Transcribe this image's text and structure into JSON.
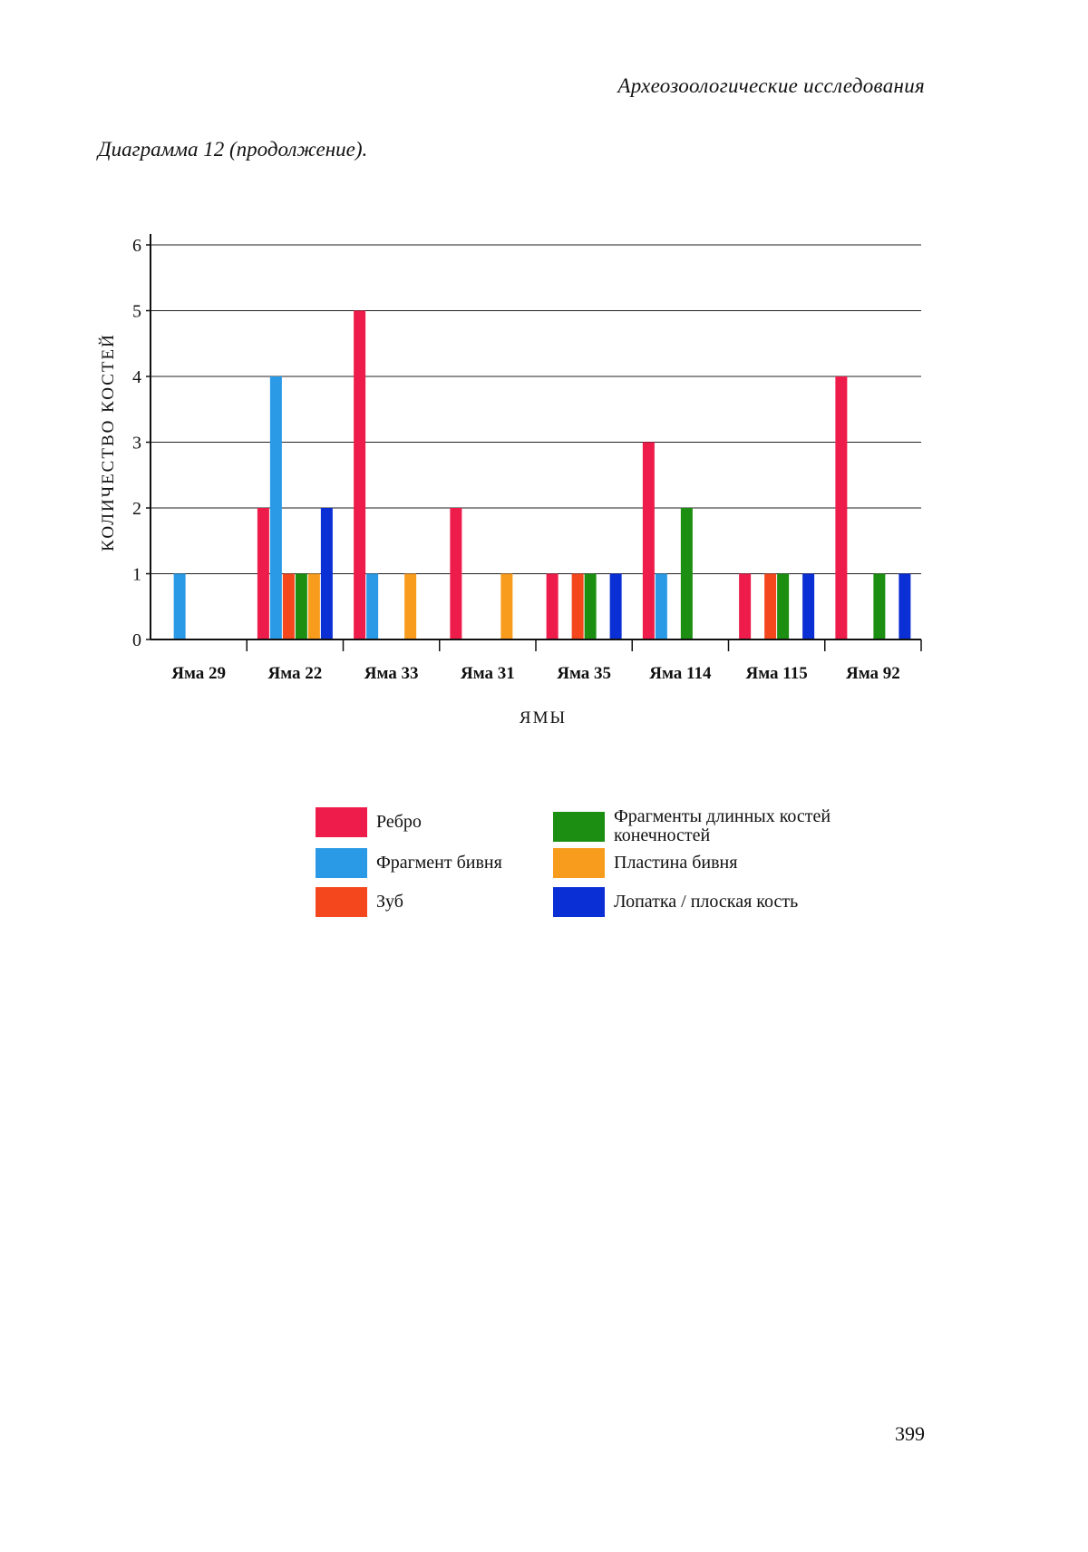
{
  "page": {
    "running_head": "Археозоологические исследования",
    "caption": "Диаграмма 12 (продолжение).",
    "page_number": "399"
  },
  "chart_data": {
    "type": "bar",
    "title": "",
    "xlabel": "ЯМЫ",
    "ylabel": "КОЛИЧЕСТВО КОСТЕЙ",
    "ylim": [
      0,
      6
    ],
    "yticks": [
      0,
      1,
      2,
      3,
      4,
      5,
      6
    ],
    "grid": "horizontal",
    "legend_position": "bottom",
    "categories": [
      "Яма 29",
      "Яма 22",
      "Яма 33",
      "Яма 31",
      "Яма 35",
      "Яма 114",
      "Яма 115",
      "Яма 92"
    ],
    "series": [
      {
        "name": "Ребро",
        "color": "#ee1c4a",
        "values": [
          0,
          2,
          5,
          2,
          1,
          3,
          1,
          4
        ]
      },
      {
        "name": "Фрагмент бивня",
        "color": "#2a9ae6",
        "values": [
          1,
          4,
          1,
          0,
          0,
          1,
          0,
          0
        ]
      },
      {
        "name": "Зуб",
        "color": "#f5471e",
        "values": [
          0,
          1,
          0,
          0,
          1,
          0,
          1,
          0
        ]
      },
      {
        "name": "Фрагменты длинных костей конечностей",
        "color": "#1c8f12",
        "values": [
          0,
          1,
          0,
          0,
          1,
          2,
          1,
          1
        ]
      },
      {
        "name": "Пластина бивня",
        "color": "#f89c1d",
        "values": [
          0,
          1,
          1,
          1,
          0,
          0,
          0,
          0
        ]
      },
      {
        "name": "Лопатка / плоская кость",
        "color": "#0a2fd4",
        "values": [
          0,
          2,
          0,
          0,
          1,
          0,
          1,
          1
        ]
      }
    ]
  }
}
